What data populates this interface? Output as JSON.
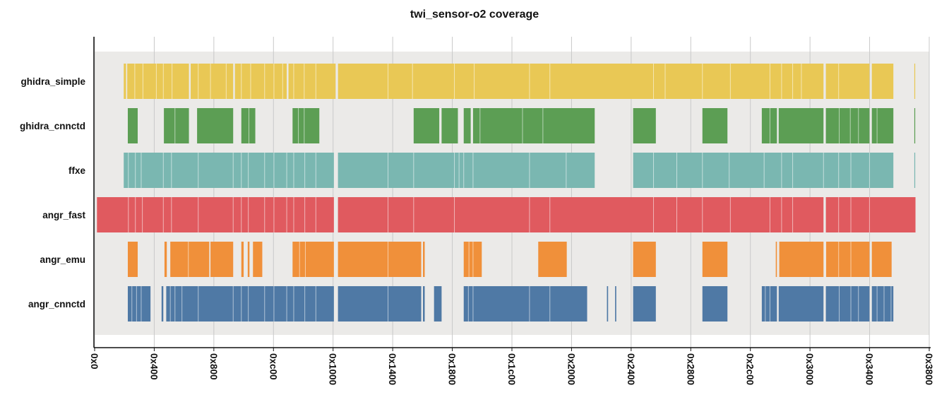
{
  "chart_data": {
    "type": "bar",
    "subtype": "coverage-intervals",
    "title": "twi_sensor-o2 coverage",
    "xlim": [
      0,
      14336
    ],
    "x_ticks": [
      0,
      1024,
      2048,
      3072,
      4096,
      5120,
      6144,
      7168,
      8192,
      9216,
      10240,
      11264,
      12288,
      13312,
      14336
    ],
    "x_tick_labels": [
      "0x0",
      "0x400",
      "0x800",
      "0xc00",
      "0x1000",
      "0x1400",
      "0x1800",
      "0x1c00",
      "0x2000",
      "0x2400",
      "0x2800",
      "0x2c00",
      "0x3000",
      "0x3400",
      "0x3800"
    ],
    "grid": "vertical",
    "legend": "none",
    "series": [
      {
        "name": "ghidra_simple",
        "color": "#e9c855",
        "intervals": [
          [
            500,
            540
          ],
          [
            560,
            1620
          ],
          [
            1650,
            2380
          ],
          [
            2410,
            3300
          ],
          [
            3330,
            4110
          ],
          [
            4140,
            4080
          ],
          [
            4180,
            12520
          ],
          [
            12560,
            13310
          ],
          [
            13350,
            13720
          ],
          [
            14080,
            14095
          ]
        ],
        "gaps": [
          690,
          830,
          1060,
          1180,
          1330,
          1780,
          1990,
          2260,
          2520,
          2680,
          2920,
          3080,
          3230,
          3420,
          3600,
          3800,
          5040,
          5460,
          6180,
          6520,
          7470,
          7820,
          9600,
          9800,
          10440,
          10920,
          11600,
          11800,
          11990,
          12140,
          12780
        ]
      },
      {
        "name": "ghidra_cnnctd",
        "color": "#5c9e54",
        "intervals": [
          [
            570,
            740
          ],
          [
            1190,
            1620
          ],
          [
            1760,
            2380
          ],
          [
            2520,
            2760
          ],
          [
            3400,
            3860
          ],
          [
            5480,
            5920
          ],
          [
            5960,
            6240
          ],
          [
            6340,
            6460
          ],
          [
            6500,
            8590
          ],
          [
            9250,
            9640
          ],
          [
            10440,
            10870
          ],
          [
            11460,
            11720
          ],
          [
            11750,
            12520
          ],
          [
            12560,
            13310
          ],
          [
            13350,
            13720
          ],
          [
            14080,
            14095
          ]
        ],
        "gaps": [
          1380,
          2650,
          3500,
          3600,
          6620,
          7350,
          7700,
          11600,
          12790,
          12980,
          13120,
          13440
        ]
      },
      {
        "name": "ffxe",
        "color": "#7ab7b1",
        "intervals": [
          [
            500,
            4110
          ],
          [
            4180,
            8590
          ],
          [
            9250,
            13720
          ],
          [
            14080,
            14095
          ]
        ],
        "gaps": [
          580,
          700,
          800,
          1180,
          1320,
          1780,
          2380,
          2520,
          2640,
          2920,
          3080,
          3300,
          3420,
          3610,
          3800,
          5040,
          5480,
          6180,
          6260,
          6340,
          6500,
          7470,
          8100,
          9600,
          10000,
          10440,
          10900,
          11500,
          11800,
          11990,
          12520,
          12780,
          12990,
          13310
        ]
      },
      {
        "name": "angr_fast",
        "color": "#e05a5f",
        "intervals": [
          [
            40,
            4110
          ],
          [
            4180,
            12520
          ],
          [
            12560,
            14100
          ]
        ],
        "gaps": [
          580,
          700,
          820,
          1180,
          1320,
          1780,
          2380,
          2520,
          2640,
          2920,
          3080,
          3300,
          3420,
          3610,
          3800,
          5040,
          5480,
          6180,
          7470,
          7820,
          9600,
          10000,
          10440,
          10920,
          11600,
          11800,
          11990,
          12780,
          12990,
          13310
        ]
      },
      {
        "name": "angr_emu",
        "color": "#f0903a",
        "intervals": [
          [
            570,
            740
          ],
          [
            1200,
            1240
          ],
          [
            1300,
            1970
          ],
          [
            1990,
            2380
          ],
          [
            2520,
            2560
          ],
          [
            2630,
            2660
          ],
          [
            2720,
            2880
          ],
          [
            3400,
            4110
          ],
          [
            4180,
            5610
          ],
          [
            5640,
            5670
          ],
          [
            6340,
            6650
          ],
          [
            7620,
            8110
          ],
          [
            9250,
            9640
          ],
          [
            10440,
            10870
          ],
          [
            11700,
            11720
          ],
          [
            11760,
            12520
          ],
          [
            12560,
            13310
          ],
          [
            13350,
            13690
          ]
        ],
        "gaps": [
          1610,
          3520,
          3620,
          5040,
          6430,
          6500,
          12560,
          12780,
          12990
        ]
      },
      {
        "name": "angr_cnnctd",
        "color": "#4f79a5",
        "intervals": [
          [
            570,
            960
          ],
          [
            1150,
            1180
          ],
          [
            1230,
            4110
          ],
          [
            4180,
            5610
          ],
          [
            5640,
            5670
          ],
          [
            5830,
            5960
          ],
          [
            6340,
            8460
          ],
          [
            8800,
            8820
          ],
          [
            8940,
            8960
          ],
          [
            9250,
            9640
          ],
          [
            10440,
            10870
          ],
          [
            11460,
            11720
          ],
          [
            11750,
            12520
          ],
          [
            12560,
            13310
          ],
          [
            13350,
            13720
          ]
        ],
        "gaps": [
          640,
          720,
          800,
          1300,
          1380,
          1500,
          1780,
          2380,
          2520,
          2640,
          2920,
          3080,
          3300,
          3420,
          3610,
          3800,
          5040,
          6420,
          6500,
          7470,
          7820,
          11520,
          11600,
          12790,
          12990,
          13120,
          13440,
          13560,
          13680
        ]
      }
    ]
  }
}
